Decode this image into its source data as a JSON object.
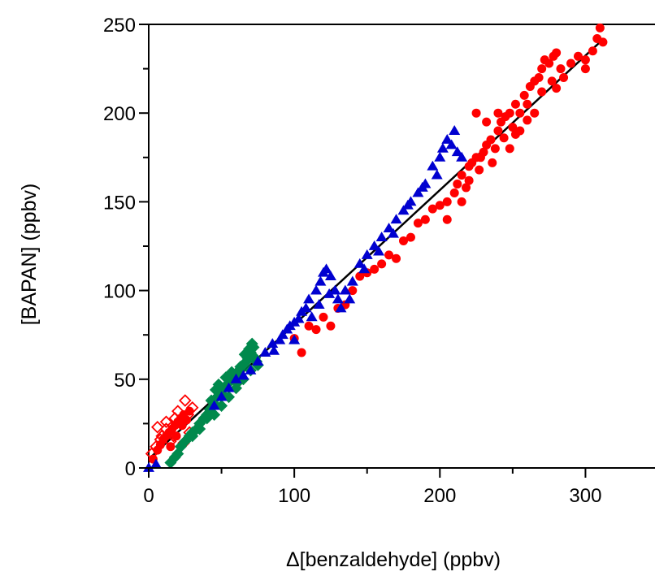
{
  "chart_data": {
    "type": "scatter",
    "xlabel": "Δ[benzaldehyde] (ppbv)",
    "ylabel": "[BAPAN] (ppbv)",
    "xlim": [
      0,
      350
    ],
    "ylim": [
      0,
      250
    ],
    "xticks": [
      0,
      100,
      200,
      300
    ],
    "yticks": [
      0,
      50,
      100,
      150,
      200,
      250
    ],
    "grid": false,
    "series": [
      {
        "marker": "diamond-open",
        "color": "#ff0000",
        "points": [
          [
            2,
            8
          ],
          [
            5,
            12
          ],
          [
            6,
            23
          ],
          [
            9,
            18
          ],
          [
            12,
            22
          ],
          [
            15,
            15
          ],
          [
            18,
            28
          ],
          [
            20,
            32
          ],
          [
            22,
            25
          ],
          [
            25,
            38
          ],
          [
            27,
            30
          ],
          [
            28,
            20
          ],
          [
            30,
            34
          ],
          [
            12,
            26
          ],
          [
            17,
            18
          ],
          [
            24,
            14
          ],
          [
            8,
            16
          ]
        ]
      },
      {
        "marker": "circle",
        "color": "#ff0000",
        "points": [
          [
            3,
            5
          ],
          [
            6,
            10
          ],
          [
            8,
            13
          ],
          [
            10,
            16
          ],
          [
            12,
            18
          ],
          [
            14,
            20
          ],
          [
            16,
            22
          ],
          [
            18,
            24
          ],
          [
            20,
            26
          ],
          [
            22,
            28
          ],
          [
            24,
            30
          ],
          [
            26,
            27
          ],
          [
            28,
            32
          ],
          [
            15,
            12
          ],
          [
            19,
            18
          ],
          [
            23,
            24
          ],
          [
            100,
            73
          ],
          [
            105,
            65
          ],
          [
            110,
            80
          ],
          [
            115,
            78
          ],
          [
            120,
            85
          ],
          [
            125,
            80
          ],
          [
            130,
            90
          ],
          [
            135,
            92
          ],
          [
            140,
            100
          ],
          [
            145,
            108
          ],
          [
            150,
            110
          ],
          [
            155,
            112
          ],
          [
            160,
            115
          ],
          [
            165,
            120
          ],
          [
            170,
            118
          ],
          [
            175,
            128
          ],
          [
            180,
            130
          ],
          [
            185,
            138
          ],
          [
            190,
            140
          ],
          [
            195,
            146
          ],
          [
            200,
            148
          ],
          [
            205,
            150
          ],
          [
            210,
            155
          ],
          [
            212,
            160
          ],
          [
            215,
            165
          ],
          [
            218,
            158
          ],
          [
            220,
            170
          ],
          [
            222,
            172
          ],
          [
            225,
            175
          ],
          [
            227,
            168
          ],
          [
            230,
            178
          ],
          [
            232,
            182
          ],
          [
            235,
            185
          ],
          [
            238,
            180
          ],
          [
            240,
            190
          ],
          [
            242,
            195
          ],
          [
            245,
            198
          ],
          [
            248,
            200
          ],
          [
            250,
            192
          ],
          [
            252,
            205
          ],
          [
            255,
            200
          ],
          [
            258,
            210
          ],
          [
            260,
            205
          ],
          [
            262,
            215
          ],
          [
            265,
            218
          ],
          [
            268,
            220
          ],
          [
            270,
            225
          ],
          [
            272,
            230
          ],
          [
            275,
            228
          ],
          [
            278,
            232
          ],
          [
            280,
            234
          ],
          [
            283,
            225
          ],
          [
            285,
            220
          ],
          [
            290,
            228
          ],
          [
            295,
            232
          ],
          [
            300,
            230
          ],
          [
            305,
            235
          ],
          [
            308,
            242
          ],
          [
            310,
            248
          ],
          [
            312,
            240
          ],
          [
            248,
            180
          ],
          [
            255,
            190
          ],
          [
            265,
            200
          ],
          [
            280,
            214
          ],
          [
            300,
            225
          ],
          [
            225,
            200
          ],
          [
            232,
            195
          ],
          [
            240,
            200
          ],
          [
            205,
            140
          ],
          [
            215,
            150
          ],
          [
            220,
            162
          ],
          [
            228,
            175
          ],
          [
            236,
            172
          ],
          [
            244,
            186
          ],
          [
            252,
            188
          ],
          [
            260,
            196
          ],
          [
            270,
            212
          ],
          [
            277,
            218
          ]
        ]
      },
      {
        "marker": "diamond",
        "color": "#00894c",
        "points": [
          [
            15,
            3
          ],
          [
            18,
            6
          ],
          [
            20,
            8
          ],
          [
            22,
            12
          ],
          [
            25,
            15
          ],
          [
            28,
            18
          ],
          [
            30,
            20
          ],
          [
            33,
            22
          ],
          [
            35,
            25
          ],
          [
            38,
            28
          ],
          [
            40,
            30
          ],
          [
            42,
            33
          ],
          [
            45,
            36
          ],
          [
            47,
            40
          ],
          [
            50,
            42
          ],
          [
            52,
            45
          ],
          [
            55,
            48
          ],
          [
            58,
            50
          ],
          [
            60,
            52
          ],
          [
            62,
            55
          ],
          [
            65,
            58
          ],
          [
            67,
            60
          ],
          [
            68,
            62
          ],
          [
            70,
            65
          ],
          [
            72,
            68
          ],
          [
            73,
            62
          ],
          [
            75,
            58
          ],
          [
            70,
            55
          ],
          [
            65,
            50
          ],
          [
            60,
            45
          ],
          [
            55,
            40
          ],
          [
            50,
            35
          ],
          [
            45,
            30
          ],
          [
            40,
            28
          ],
          [
            35,
            22
          ],
          [
            30,
            18
          ],
          [
            48,
            47
          ],
          [
            53,
            51
          ],
          [
            57,
            54
          ],
          [
            63,
            57
          ],
          [
            66,
            64
          ],
          [
            69,
            67
          ],
          [
            71,
            70
          ],
          [
            74,
            60
          ],
          [
            61,
            48
          ],
          [
            56,
            50
          ],
          [
            46,
            44
          ],
          [
            43,
            38
          ]
        ]
      },
      {
        "marker": "triangle",
        "color": "#0000d0",
        "points": [
          [
            0,
            0
          ],
          [
            5,
            2
          ],
          [
            45,
            35
          ],
          [
            50,
            40
          ],
          [
            55,
            45
          ],
          [
            60,
            50
          ],
          [
            65,
            52
          ],
          [
            70,
            55
          ],
          [
            75,
            60
          ],
          [
            80,
            65
          ],
          [
            85,
            70
          ],
          [
            90,
            72
          ],
          [
            95,
            78
          ],
          [
            100,
            82
          ],
          [
            105,
            88
          ],
          [
            108,
            90
          ],
          [
            110,
            95
          ],
          [
            115,
            100
          ],
          [
            118,
            105
          ],
          [
            120,
            110
          ],
          [
            122,
            112
          ],
          [
            125,
            108
          ],
          [
            128,
            100
          ],
          [
            130,
            95
          ],
          [
            135,
            100
          ],
          [
            140,
            105
          ],
          [
            145,
            115
          ],
          [
            150,
            120
          ],
          [
            155,
            125
          ],
          [
            160,
            130
          ],
          [
            165,
            135
          ],
          [
            170,
            140
          ],
          [
            175,
            145
          ],
          [
            180,
            150
          ],
          [
            185,
            155
          ],
          [
            190,
            160
          ],
          [
            195,
            170
          ],
          [
            200,
            175
          ],
          [
            202,
            180
          ],
          [
            205,
            185
          ],
          [
            208,
            182
          ],
          [
            210,
            190
          ],
          [
            212,
            178
          ],
          [
            215,
            175
          ],
          [
            100,
            72
          ],
          [
            112,
            85
          ],
          [
            117,
            92
          ],
          [
            124,
            98
          ],
          [
            132,
            90
          ],
          [
            138,
            95
          ],
          [
            148,
            112
          ],
          [
            158,
            122
          ],
          [
            168,
            132
          ],
          [
            178,
            148
          ],
          [
            188,
            158
          ],
          [
            198,
            165
          ],
          [
            86,
            66
          ],
          [
            92,
            75
          ],
          [
            97,
            80
          ],
          [
            103,
            84
          ]
        ]
      }
    ],
    "fit_line": {
      "x": [
        0,
        310
      ],
      "y": [
        5,
        240
      ],
      "color": "#000000"
    }
  }
}
